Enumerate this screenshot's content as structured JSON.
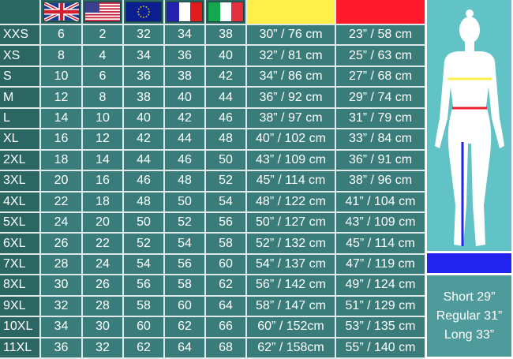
{
  "header": {
    "flags": [
      "uk-flag",
      "us-flag",
      "eu-flag",
      "france-flag",
      "italy-flag"
    ],
    "bust_color": "#ffef4a",
    "waist_color": "#ff1a2e"
  },
  "rows": [
    [
      "XXS",
      "6",
      "2",
      "32",
      "34",
      "38",
      "30” / 76 cm",
      "23” / 58 cm"
    ],
    [
      "XS",
      "8",
      "4",
      "34",
      "36",
      "40",
      "32” / 81 cm",
      "25” / 63 cm"
    ],
    [
      "S",
      "10",
      "6",
      "36",
      "38",
      "42",
      "34” / 86 cm",
      "27” / 68 cm"
    ],
    [
      "M",
      "12",
      "8",
      "38",
      "40",
      "44",
      "36” / 92 cm",
      "29” / 74 cm"
    ],
    [
      "L",
      "14",
      "10",
      "40",
      "42",
      "46",
      "38” / 97 cm",
      "31” / 79 cm"
    ],
    [
      "XL",
      "16",
      "12",
      "42",
      "44",
      "48",
      "40” / 102 cm",
      "33” / 84 cm"
    ],
    [
      "2XL",
      "18",
      "14",
      "44",
      "46",
      "50",
      "43” / 109 cm",
      "36” / 91 cm"
    ],
    [
      "3XL",
      "20",
      "16",
      "46",
      "48",
      "52",
      "45” / 114 cm",
      "38” / 96 cm"
    ],
    [
      "4XL",
      "22",
      "18",
      "48",
      "50",
      "54",
      "48” / 122 cm",
      "41” / 104 cm"
    ],
    [
      "5XL",
      "24",
      "20",
      "50",
      "52",
      "56",
      "50” / 127 cm",
      "43” / 109 cm"
    ],
    [
      "6XL",
      "26",
      "22",
      "52",
      "54",
      "58",
      "52” / 132 cm",
      "45” / 114 cm"
    ],
    [
      "7XL",
      "28",
      "24",
      "54",
      "56",
      "60",
      "54” / 137 cm",
      "47” / 119 cm"
    ],
    [
      "8XL",
      "30",
      "26",
      "56",
      "58",
      "62",
      "56” / 142 cm",
      "49” / 124 cm"
    ],
    [
      "9XL",
      "32",
      "28",
      "58",
      "60",
      "64",
      "58” / 147 cm",
      "51” / 129 cm"
    ],
    [
      "10XL",
      "34",
      "30",
      "60",
      "62",
      "66",
      "60” / 152cm",
      "53” / 135 cm"
    ],
    [
      "11XL",
      "36",
      "32",
      "62",
      "64",
      "68",
      "62” / 158cm",
      "55” / 140 cm"
    ]
  ],
  "lengths": {
    "inseam_color": "#2323f0",
    "items": [
      "Short 29”",
      "Regular 31”",
      "Long 33”"
    ]
  }
}
